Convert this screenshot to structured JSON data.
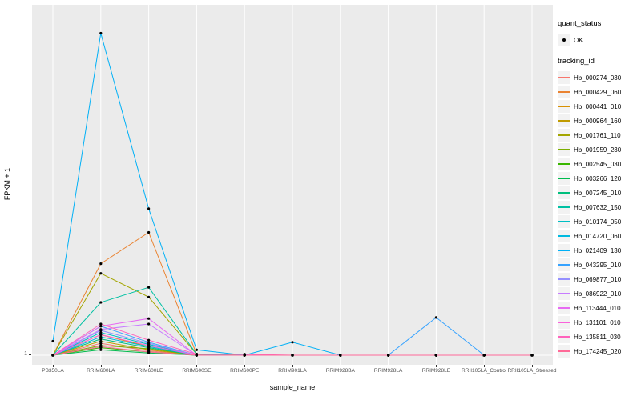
{
  "figure": {
    "ylabel": "FPKM + 1",
    "xlabel": "sample_name",
    "y_tick": "1"
  },
  "legend": {
    "quant_status": {
      "title": "quant_status",
      "items": [
        {
          "label": "OK",
          "symbol": "point"
        }
      ]
    },
    "tracking_id": {
      "title": "tracking_id"
    }
  },
  "chart_data": {
    "type": "line",
    "title": "",
    "xlabel": "sample_name",
    "ylabel": "FPKM + 1",
    "ylim": [
      1,
      310
    ],
    "y_ticks_visible": [
      "1"
    ],
    "grid": "white gridlines on gray panel",
    "legend_position": "right",
    "panel_background": "#EBEBEB",
    "point_color": "#000000",
    "point_meaning": "quant_status OK",
    "categories": [
      "PB350LA",
      "RRIM600LA",
      "RRIM600LE",
      "RRIM600SE",
      "RRIM600PE",
      "RRIM901LA",
      "RRIM928BA",
      "RRIM928LA",
      "RRIM928LE",
      "RRII105LA_Control",
      "RRII105LA_Stressed"
    ],
    "series": [
      {
        "name": "Hb_000274_030",
        "color": "#F8766D",
        "values": [
          1,
          12,
          5,
          1,
          1,
          1,
          1,
          1,
          1,
          1,
          1
        ]
      },
      {
        "name": "Hb_000429_060",
        "color": "#EA8331",
        "values": [
          1,
          86,
          115,
          2,
          1,
          1,
          1,
          1,
          1,
          1,
          1
        ]
      },
      {
        "name": "Hb_000441_010",
        "color": "#D89000",
        "values": [
          1,
          20,
          9,
          1,
          1,
          1,
          1,
          1,
          1,
          1,
          1
        ]
      },
      {
        "name": "Hb_000964_160",
        "color": "#C09B00",
        "values": [
          1,
          14,
          6,
          1,
          1,
          1,
          1,
          1,
          1,
          1,
          1
        ]
      },
      {
        "name": "Hb_001761_110",
        "color": "#A3A500",
        "values": [
          1,
          77,
          55,
          2,
          1,
          1,
          1,
          1,
          1,
          1,
          1
        ]
      },
      {
        "name": "Hb_001959_230",
        "color": "#7CAE00",
        "values": [
          1,
          10,
          7,
          1,
          1,
          1,
          1,
          1,
          1,
          1,
          1
        ]
      },
      {
        "name": "Hb_002545_030",
        "color": "#39B600",
        "values": [
          1,
          8,
          4,
          1,
          1,
          1,
          1,
          1,
          1,
          1,
          1
        ]
      },
      {
        "name": "Hb_003266_120",
        "color": "#00BB4E",
        "values": [
          1,
          6,
          3,
          1,
          1,
          1,
          1,
          1,
          1,
          1,
          1
        ]
      },
      {
        "name": "Hb_007245_010",
        "color": "#00BF7D",
        "values": [
          1,
          16,
          8,
          1,
          1,
          1,
          1,
          1,
          1,
          1,
          1
        ]
      },
      {
        "name": "Hb_007632_150",
        "color": "#00C1A3",
        "values": [
          1,
          50,
          64,
          2,
          1,
          1,
          1,
          1,
          1,
          1,
          1
        ]
      },
      {
        "name": "Hb_010174_050",
        "color": "#00BFC4",
        "values": [
          1,
          22,
          11,
          1,
          1,
          1,
          1,
          1,
          1,
          1,
          1
        ]
      },
      {
        "name": "Hb_014720_060",
        "color": "#00BAE0",
        "values": [
          1,
          18,
          9,
          1,
          1,
          1,
          1,
          1,
          1,
          1,
          1
        ]
      },
      {
        "name": "Hb_021409_130",
        "color": "#00B0F6",
        "values": [
          14,
          300,
          137,
          6,
          1,
          13,
          1,
          1,
          1,
          1,
          1
        ]
      },
      {
        "name": "Hb_043295_010",
        "color": "#35A2FF",
        "values": [
          1,
          28,
          13,
          1,
          1,
          1,
          1,
          1,
          36,
          1,
          1
        ]
      },
      {
        "name": "Hb_069877_010",
        "color": "#9590FF",
        "values": [
          1,
          24,
          12,
          1,
          1,
          1,
          1,
          1,
          1,
          1,
          1
        ]
      },
      {
        "name": "Hb_086922_010",
        "color": "#C77CFF",
        "values": [
          1,
          25,
          30,
          1,
          1,
          1,
          1,
          1,
          1,
          1,
          1
        ]
      },
      {
        "name": "Hb_113444_010",
        "color": "#E76BF3",
        "values": [
          1,
          28,
          35,
          1,
          1,
          1,
          1,
          1,
          1,
          1,
          1
        ]
      },
      {
        "name": "Hb_131101_010",
        "color": "#FA62DB",
        "values": [
          1,
          20,
          10,
          1,
          1,
          1,
          1,
          1,
          1,
          1,
          1
        ]
      },
      {
        "name": "Hb_135811_030",
        "color": "#FF62BC",
        "values": [
          1,
          30,
          15,
          2,
          2,
          1,
          1,
          1,
          1,
          1,
          1
        ]
      },
      {
        "name": "Hb_174245_020",
        "color": "#FF6A98",
        "values": [
          1,
          9,
          4,
          1,
          1,
          1,
          1,
          1,
          1,
          1,
          1
        ]
      }
    ]
  }
}
